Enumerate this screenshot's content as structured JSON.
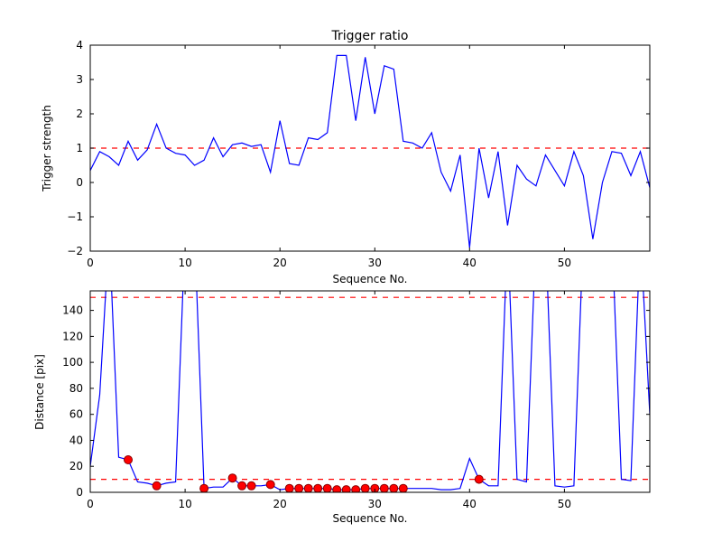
{
  "figure": {
    "bg": "#ffffff",
    "line_color": "#0000ff",
    "threshold_color": "#ff0000",
    "marker_fill": "#ff0000",
    "marker_edge": "#8b0000",
    "axis_color": "#000000"
  },
  "chart_data": [
    {
      "type": "line",
      "title": "Trigger ratio",
      "xlabel": "Sequence No.",
      "ylabel": "Trigger strength",
      "xlim": [
        0,
        59
      ],
      "ylim": [
        -2,
        4
      ],
      "xticks": [
        0,
        10,
        20,
        30,
        40,
        50
      ],
      "yticks": [
        -2,
        -1,
        0,
        1,
        2,
        3,
        4
      ],
      "thresholds": [
        1.0
      ],
      "grid": false,
      "legend": "none",
      "x": [
        0,
        1,
        2,
        3,
        4,
        5,
        6,
        7,
        8,
        9,
        10,
        11,
        12,
        13,
        14,
        15,
        16,
        17,
        18,
        19,
        20,
        21,
        22,
        23,
        24,
        25,
        26,
        27,
        28,
        29,
        30,
        31,
        32,
        33,
        34,
        35,
        36,
        37,
        38,
        39,
        40,
        41,
        42,
        43,
        44,
        45,
        46,
        47,
        48,
        49,
        50,
        51,
        52,
        53,
        54,
        55,
        56,
        57,
        58,
        59
      ],
      "y": [
        0.35,
        0.9,
        0.75,
        0.5,
        1.2,
        0.65,
        0.95,
        1.7,
        1.0,
        0.85,
        0.8,
        0.5,
        0.65,
        1.3,
        0.75,
        1.1,
        1.15,
        1.05,
        1.1,
        0.3,
        1.8,
        0.55,
        0.5,
        1.3,
        1.25,
        1.45,
        3.7,
        3.7,
        1.8,
        3.65,
        2.0,
        3.4,
        3.3,
        1.2,
        1.15,
        1.0,
        1.45,
        0.3,
        -0.25,
        0.8,
        -1.9,
        1.0,
        -0.45,
        0.9,
        -1.25,
        0.5,
        0.1,
        -0.1,
        0.8,
        0.35,
        -0.1,
        0.9,
        0.2,
        -1.65,
        0.0,
        0.9,
        0.85,
        0.2,
        0.9,
        -0.15
      ]
    },
    {
      "type": "line",
      "title": "",
      "xlabel": "Sequence No.",
      "ylabel": "Distance [pix]",
      "xlim": [
        0,
        59
      ],
      "ylim": [
        0,
        155
      ],
      "xticks": [
        0,
        10,
        20,
        30,
        40,
        50
      ],
      "yticks": [
        0,
        20,
        40,
        60,
        80,
        100,
        120,
        140
      ],
      "thresholds": [
        150,
        10
      ],
      "grid": false,
      "legend": "none",
      "x": [
        0,
        1,
        2,
        3,
        4,
        5,
        6,
        7,
        8,
        9,
        10,
        11,
        12,
        13,
        14,
        15,
        16,
        17,
        18,
        19,
        20,
        21,
        22,
        23,
        24,
        25,
        26,
        27,
        28,
        29,
        30,
        31,
        32,
        33,
        34,
        35,
        36,
        37,
        38,
        39,
        40,
        41,
        42,
        43,
        44,
        45,
        46,
        47,
        48,
        49,
        50,
        51,
        52,
        53,
        54,
        55,
        56,
        57,
        58,
        59
      ],
      "y": [
        20,
        75,
        200,
        27,
        25,
        8,
        7,
        5,
        7,
        8,
        200,
        200,
        3,
        4,
        4,
        11,
        5,
        5,
        5,
        6,
        2,
        3,
        3,
        3,
        3,
        3,
        2,
        2,
        2,
        3,
        3,
        3,
        3,
        3,
        3,
        3,
        3,
        2,
        2,
        3,
        26,
        10,
        5,
        5,
        200,
        10,
        8,
        200,
        200,
        5,
        4,
        5,
        200,
        200,
        200,
        200,
        10,
        9,
        200,
        60
      ],
      "markers": [
        [
          4,
          25
        ],
        [
          7,
          5
        ],
        [
          12,
          3
        ],
        [
          15,
          11
        ],
        [
          16,
          5
        ],
        [
          17,
          5
        ],
        [
          19,
          6
        ],
        [
          21,
          3
        ],
        [
          22,
          3
        ],
        [
          23,
          3
        ],
        [
          24,
          3
        ],
        [
          25,
          3
        ],
        [
          26,
          2
        ],
        [
          27,
          2
        ],
        [
          28,
          2
        ],
        [
          29,
          3
        ],
        [
          30,
          3
        ],
        [
          31,
          3
        ],
        [
          32,
          3
        ],
        [
          33,
          3
        ],
        [
          41,
          10
        ]
      ]
    }
  ]
}
